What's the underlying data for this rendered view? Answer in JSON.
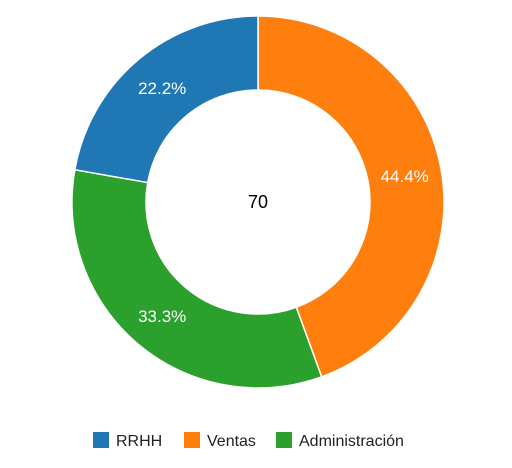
{
  "chart_data": {
    "type": "pie",
    "variant": "donut",
    "center_label": "70",
    "categories": [
      "RRHH",
      "Ventas",
      "Administración"
    ],
    "values": [
      22.2,
      44.4,
      33.3
    ],
    "percent_labels": [
      "22.2%",
      "44.4%",
      "33.3%"
    ],
    "colors": [
      "#1f77b4",
      "#ff7f0e",
      "#2ca02c"
    ],
    "legend_position": "bottom"
  }
}
